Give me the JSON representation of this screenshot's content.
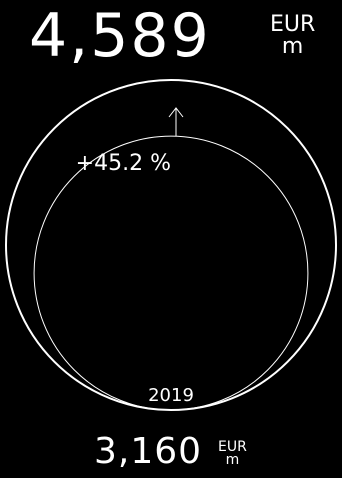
{
  "chart_data": {
    "type": "bubble",
    "unit_line1": "EUR",
    "unit_line2": "m",
    "current": {
      "value": 4589,
      "value_label": "4,589"
    },
    "previous": {
      "value": 3160,
      "value_label": "3,160",
      "year_label": "2019"
    },
    "change_label": "+45.2 %",
    "colors": {
      "background": "#000000",
      "stroke": "#ffffff",
      "text": "#ffffff"
    }
  }
}
